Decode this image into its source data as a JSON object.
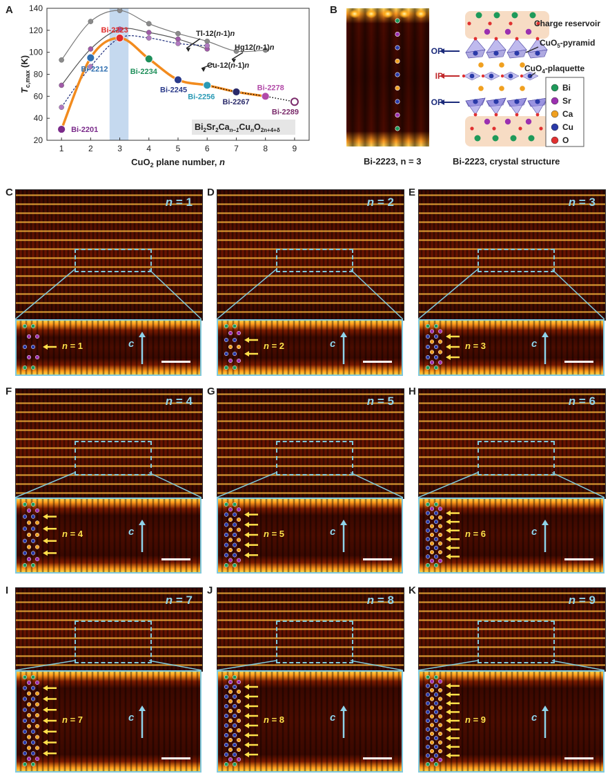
{
  "panel_letters": {
    "A": "A",
    "B": "B",
    "C": "C",
    "D": "D",
    "E": "E",
    "F": "F",
    "G": "G",
    "H": "H",
    "I": "I",
    "J": "J",
    "K": "K"
  },
  "panel_a": {
    "ylabel": "T",
    "ylabel_sub": "c,max",
    "ylabel_unit": " (K)",
    "xlabel_main": "CuO",
    "xlabel_sub": "2",
    "xlabel_rest": " plane number, ",
    "xlabel_var": "n",
    "formula": {
      "a": "Bi",
      "b": "2",
      "c": "Sr",
      "d": "2",
      "e": "Ca",
      "f": "n–1",
      "g": "Cu",
      "h": "n",
      "i": "O",
      "j": "2n+4+δ"
    },
    "family_labels": {
      "tl": "Tl-12(n-1)n",
      "hg": "Hg12(n-1)n",
      "cu": "Cu-12(n-1)n"
    },
    "colors": {
      "tl": "#555555",
      "hg": "#777777",
      "cu": "#1a2a7a",
      "bi": "#f28b1e",
      "bi_tail": "#000000",
      "highlight": "#c5d9ef"
    },
    "chart_data": {
      "type": "line",
      "xlim": [
        0.5,
        9.5
      ],
      "ylim": [
        20,
        140
      ],
      "xticks": [
        1,
        2,
        3,
        4,
        5,
        6,
        7,
        8,
        9
      ],
      "yticks": [
        20,
        40,
        60,
        80,
        100,
        120,
        140
      ],
      "series": [
        {
          "name": "Tl-12(n-1)n",
          "x": [
            1,
            2,
            3,
            4,
            5,
            6
          ],
          "y": [
            70,
            103,
            121,
            118,
            112,
            103
          ]
        },
        {
          "name": "Hg12(n-1)n",
          "x": [
            1,
            2,
            3,
            4,
            5,
            6,
            7,
            8
          ],
          "y": [
            93,
            128,
            138,
            126,
            117,
            110,
            101,
            102
          ]
        },
        {
          "name": "Cu-12(n-1)n",
          "x": [
            1,
            2,
            3,
            4,
            5,
            6
          ],
          "y": [
            50,
            87,
            113,
            113,
            108,
            106
          ]
        },
        {
          "name": "Bi2Sr2Can-1CunO2n+4+δ",
          "points": [
            {
              "label": "Bi-2201",
              "x": 1,
              "y": 30,
              "color": "#7a2a8a"
            },
            {
              "label": "Bi-2212",
              "x": 2,
              "y": 95,
              "color": "#2f6fb0"
            },
            {
              "label": "Bi-2223",
              "x": 3,
              "y": 113,
              "color": "#e02a2a"
            },
            {
              "label": "Bi-2234",
              "x": 4,
              "y": 94,
              "color": "#1e8f5a"
            },
            {
              "label": "Bi-2245",
              "x": 5,
              "y": 75,
              "color": "#2a3a8a"
            },
            {
              "label": "Bi-2256",
              "x": 6,
              "y": 70,
              "color": "#2a9ab5"
            },
            {
              "label": "Bi-2267",
              "x": 7,
              "y": 64,
              "color": "#2a2a6a"
            },
            {
              "label": "Bi-2278",
              "x": 8,
              "y": 60,
              "color": "#b24aa8"
            },
            {
              "label": "Bi-2289",
              "x": 9,
              "y": 55,
              "color": "#7a2a6a"
            }
          ]
        }
      ]
    }
  },
  "panel_b": {
    "image_caption": "Bi-2223, n = 3",
    "structure_caption": "Bi-2223, crystal structure",
    "labels": {
      "op": "OP",
      "ip": "IP",
      "reservoir": "Charge reservoir",
      "pyramid": "CuO5-pyramid",
      "plaquette": "CuO4-plaquette"
    },
    "legend": [
      {
        "name": "Bi",
        "color": "#1e9a5a"
      },
      {
        "name": "Sr",
        "color": "#9b30b0"
      },
      {
        "name": "Ca",
        "color": "#f0a020"
      },
      {
        "name": "Cu",
        "color": "#2a3aa8"
      },
      {
        "name": "O",
        "color": "#e03030"
      }
    ]
  },
  "stem_panels": [
    {
      "letter": "C",
      "n": "1"
    },
    {
      "letter": "D",
      "n": "2"
    },
    {
      "letter": "E",
      "n": "3"
    },
    {
      "letter": "F",
      "n": "4"
    },
    {
      "letter": "G",
      "n": "5"
    },
    {
      "letter": "H",
      "n": "6"
    },
    {
      "letter": "I",
      "n": "7"
    },
    {
      "letter": "J",
      "n": "8"
    },
    {
      "letter": "K",
      "n": "9"
    }
  ],
  "n_prefix": "n",
  "n_eq": " = ",
  "c_axis_label": "c"
}
